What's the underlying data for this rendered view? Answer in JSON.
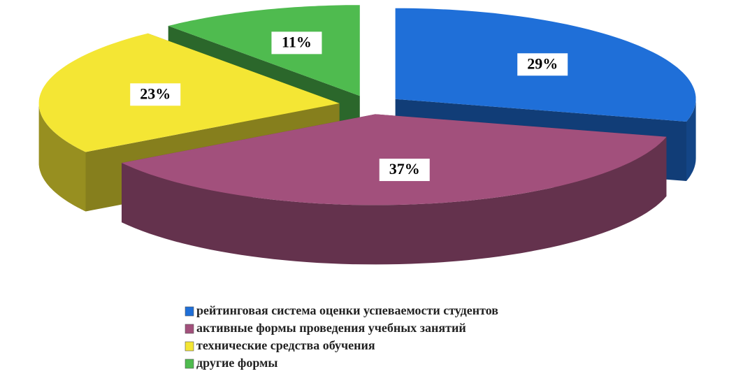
{
  "chart_data": {
    "type": "pie",
    "three_d": true,
    "categories": [
      "рейтинговая система оценки успеваемости студентов",
      "активные формы проведения учебных занятий",
      "технические средства обучения",
      "другие формы"
    ],
    "values": [
      29,
      37,
      23,
      11
    ],
    "value_labels": [
      "29%",
      "37%",
      "23%",
      "11%"
    ],
    "colors": [
      "#1f6fd8",
      "#a2507c",
      "#f4e634",
      "#4fbb4f"
    ],
    "legend": "bottom"
  }
}
